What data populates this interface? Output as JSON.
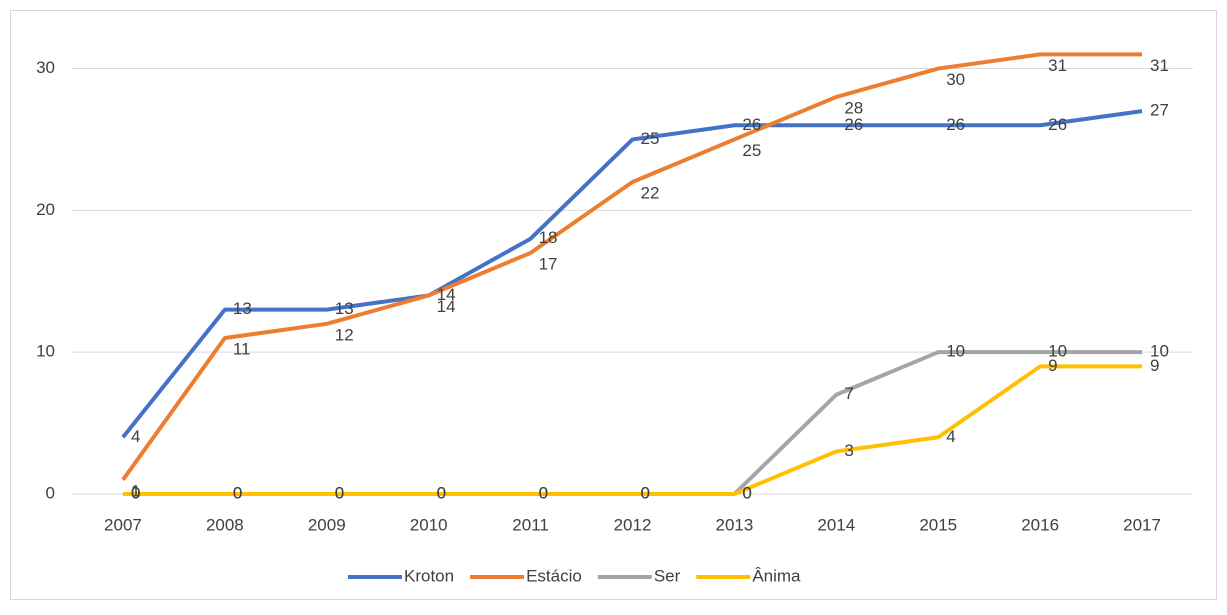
{
  "chart_data": {
    "type": "line",
    "categories": [
      "2007",
      "2008",
      "2009",
      "2010",
      "2011",
      "2012",
      "2013",
      "2014",
      "2015",
      "2016",
      "2017"
    ],
    "series": [
      {
        "name": "Kroton",
        "color": "#4472c4",
        "values": [
          4,
          13,
          13,
          14,
          18,
          25,
          26,
          26,
          26,
          26,
          27
        ]
      },
      {
        "name": "Estácio",
        "color": "#ed7d31",
        "values": [
          1,
          11,
          12,
          14,
          17,
          22,
          25,
          28,
          30,
          31,
          31
        ]
      },
      {
        "name": "Ser",
        "color": "#a5a5a5",
        "values": [
          0,
          0,
          0,
          0,
          0,
          0,
          0,
          7,
          10,
          10,
          10
        ]
      },
      {
        "name": "Ânima",
        "color": "#ffc000",
        "values": [
          0,
          0,
          0,
          0,
          0,
          0,
          0,
          3,
          4,
          9,
          9
        ]
      }
    ],
    "ylim": [
      0,
      33
    ],
    "yticks": [
      0,
      10,
      20,
      30
    ],
    "grid": true,
    "legend": "bottom"
  }
}
